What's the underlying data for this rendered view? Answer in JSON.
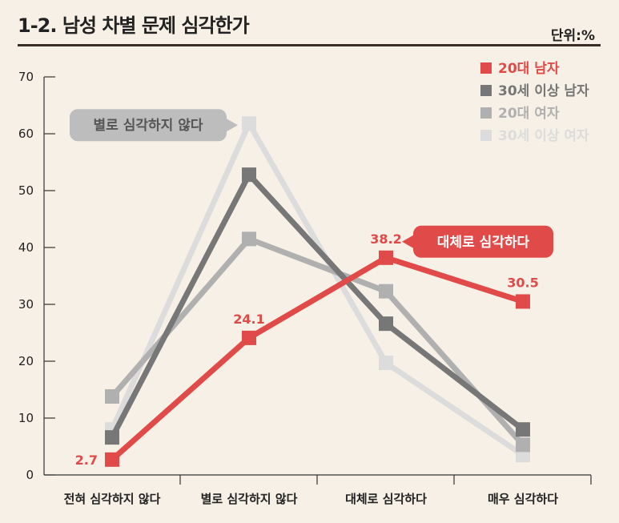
{
  "header": {
    "title": "1-2. 남성 차별 문제 심각한가",
    "unit": "단위:%"
  },
  "chart_data": {
    "type": "line",
    "title": "1-2. 남성 차별 문제 심각한가",
    "unit": "단위:%",
    "categories": [
      "전혀 심각하지 않다",
      "별로 심각하지 않다",
      "대체로 심각하다",
      "매우 심각하다"
    ],
    "ylim": [
      0,
      70
    ],
    "yticks": [
      0,
      10,
      20,
      30,
      40,
      50,
      60,
      70
    ],
    "grid": false,
    "legend_position": "top-right",
    "series": [
      {
        "name": "30세 이상 여자",
        "color": "#dcdcdc",
        "values": [
          8.0,
          61.8,
          19.7,
          3.5
        ],
        "labels": [
          "",
          "",
          "",
          ""
        ]
      },
      {
        "name": "20대 여자",
        "color": "#b0b0b0",
        "values": [
          13.8,
          41.5,
          32.3,
          5.3
        ],
        "labels": [
          "",
          "",
          "",
          ""
        ]
      },
      {
        "name": "30세 이상 남자",
        "color": "#777777",
        "values": [
          6.6,
          52.8,
          26.6,
          8.0
        ],
        "labels": [
          "",
          "",
          "",
          ""
        ]
      },
      {
        "name": "20대 남자",
        "color": "#e04a48",
        "values": [
          2.7,
          24.1,
          38.2,
          30.5
        ],
        "labels": [
          "2.7",
          "24.1",
          "38.2",
          "30.5"
        ]
      }
    ],
    "legend_order": [
      "20대 남자",
      "30세 이상 남자",
      "20대 여자",
      "30세 이상 여자"
    ],
    "annotations": [
      {
        "text": "별로 심각하지 않다",
        "color": "#bdbdbd",
        "series": "30세 이상 여자",
        "category_index": 1
      },
      {
        "text": "대체로 심각하다",
        "color": "#e04a48",
        "series": "20대 남자",
        "category_index": 2
      }
    ]
  }
}
